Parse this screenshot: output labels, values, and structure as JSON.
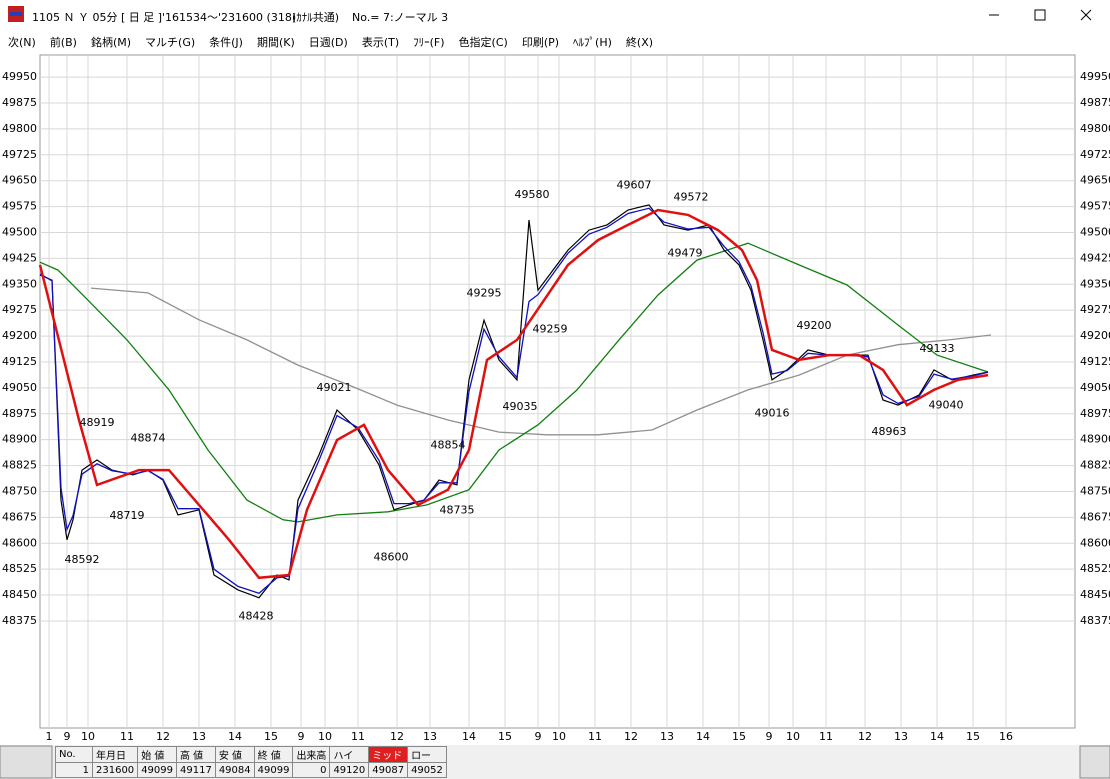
{
  "window": {
    "title": [
      "1105 Ｎ Ｙ 05分 [ 日 足 ]",
      "'161534～'231600 (318)",
      "(ｶﾅﾙ共通)",
      "No.= 7:ノーマル 3"
    ]
  },
  "menu": [
    "次(N)",
    "前(B)",
    "銘柄(M)",
    "マルチ(G)",
    "条件(J)",
    "期間(K)",
    "日週(D)",
    "表示(T)",
    "ﾌﾘｰ(F)",
    "色指定(C)",
    "印刷(P)",
    "ﾍﾙﾌﾟ(H)",
    "終(X)"
  ],
  "chart_data": {
    "type": "line",
    "xlim": [
      0,
      345
    ],
    "xticks": [
      {
        "value": 3,
        "label": "1"
      },
      {
        "value": 9,
        "label": "9"
      },
      {
        "value": 16,
        "label": "10"
      },
      {
        "value": 29,
        "label": "11"
      },
      {
        "value": 41,
        "label": "12"
      },
      {
        "value": 53,
        "label": "13"
      },
      {
        "value": 65,
        "label": "14"
      },
      {
        "value": 77,
        "label": "15"
      },
      {
        "value": 87,
        "label": "9"
      },
      {
        "value": 95,
        "label": "10"
      },
      {
        "value": 106,
        "label": "11"
      },
      {
        "value": 119,
        "label": "12"
      },
      {
        "value": 130,
        "label": "13"
      },
      {
        "value": 143,
        "label": "14"
      },
      {
        "value": 155,
        "label": "15"
      },
      {
        "value": 166,
        "label": "9"
      },
      {
        "value": 173,
        "label": "10"
      },
      {
        "value": 185,
        "label": "11"
      },
      {
        "value": 197,
        "label": "12"
      },
      {
        "value": 209,
        "label": "13"
      },
      {
        "value": 221,
        "label": "14"
      },
      {
        "value": 233,
        "label": "15"
      },
      {
        "value": 243,
        "label": "9"
      },
      {
        "value": 251,
        "label": "10"
      },
      {
        "value": 262,
        "label": "11"
      },
      {
        "value": 275,
        "label": "12"
      },
      {
        "value": 287,
        "label": "13"
      },
      {
        "value": 299,
        "label": "14"
      },
      {
        "value": 311,
        "label": "15"
      },
      {
        "value": 322,
        "label": "16"
      }
    ],
    "ylim": [
      48065,
      50014
    ],
    "yticks": [
      49950,
      49875,
      49800,
      49725,
      49650,
      49575,
      49500,
      49425,
      49350,
      49275,
      49200,
      49125,
      49050,
      48975,
      48900,
      48825,
      48750,
      48675,
      48600,
      48525,
      48450,
      48375
    ],
    "grid": true,
    "series": [
      {
        "color": "#000000",
        "x": [
          0,
          4,
          7,
          9,
          11,
          14,
          19,
          24,
          31,
          36,
          41,
          46,
          53,
          58,
          66,
          73,
          79,
          83,
          86,
          93,
          99,
          106,
          113,
          118,
          123,
          128,
          133,
          139,
          143,
          148,
          153,
          159,
          163,
          166,
          171,
          176,
          183,
          189,
          196,
          203,
          208,
          216,
          223,
          228,
          233,
          237,
          241,
          244,
          249,
          256,
          263,
          269,
          276,
          281,
          286,
          293,
          298,
          304,
          311,
          316
        ],
        "values": [
          49377,
          49362,
          48725,
          48610,
          48668,
          48812,
          48841,
          48812,
          48798,
          48812,
          48783,
          48682,
          48697,
          48508,
          48465,
          48442,
          48508,
          48494,
          48725,
          48856,
          48986,
          48928,
          48827,
          48697,
          48711,
          48725,
          48783,
          48769,
          49073,
          49246,
          49131,
          49073,
          49536,
          49333,
          49391,
          49449,
          49507,
          49522,
          49565,
          49580,
          49522,
          49507,
          49522,
          49449,
          49406,
          49333,
          49189,
          49073,
          49102,
          49160,
          49145,
          49145,
          49145,
          49015,
          49000,
          49029,
          49102,
          49073,
          49087,
          49096
        ]
      },
      {
        "color": "#1010c0",
        "x": [
          0,
          4,
          7,
          9,
          11,
          14,
          19,
          24,
          31,
          36,
          41,
          46,
          53,
          58,
          66,
          73,
          79,
          83,
          86,
          93,
          99,
          106,
          113,
          118,
          123,
          128,
          133,
          139,
          143,
          148,
          153,
          159,
          163,
          166,
          171,
          176,
          183,
          189,
          196,
          203,
          208,
          216,
          223,
          228,
          233,
          237,
          241,
          244,
          249,
          256,
          263,
          269,
          276,
          281,
          286,
          293,
          298,
          304,
          311,
          316
        ],
        "values": [
          49380,
          49360,
          48760,
          48640,
          48680,
          48800,
          48830,
          48810,
          48800,
          48810,
          48785,
          48700,
          48700,
          48525,
          48475,
          48455,
          48500,
          48505,
          48700,
          48840,
          48970,
          48935,
          48840,
          48715,
          48715,
          48725,
          48775,
          48775,
          49040,
          49220,
          49140,
          49080,
          49300,
          49320,
          49380,
          49440,
          49495,
          49515,
          49555,
          49570,
          49530,
          49510,
          49515,
          49460,
          49415,
          49345,
          49210,
          49090,
          49100,
          49150,
          49145,
          49145,
          49140,
          49030,
          49005,
          49025,
          49090,
          49075,
          49085,
          49095
        ]
      },
      {
        "color": "#e01010",
        "x": [
          0,
          13,
          19,
          33,
          43,
          53,
          63,
          73,
          83,
          89,
          99,
          108,
          116,
          126,
          136,
          143,
          149,
          159,
          168,
          176,
          186,
          196,
          206,
          216,
          226,
          234,
          239,
          244,
          253,
          263,
          273,
          281,
          289,
          298,
          306,
          316
        ],
        "values": [
          49406,
          48957,
          48769,
          48812,
          48812,
          48711,
          48610,
          48500,
          48508,
          48697,
          48899,
          48943,
          48812,
          48711,
          48755,
          48870,
          49131,
          49189,
          49304,
          49406,
          49478,
          49522,
          49565,
          49551,
          49507,
          49449,
          49362,
          49160,
          49131,
          49145,
          49145,
          49102,
          49000,
          49044,
          49073,
          49087
        ]
      },
      {
        "color": "#108010",
        "x": [
          0,
          6,
          16,
          29,
          43,
          56,
          69,
          81,
          86,
          99,
          116,
          129,
          143,
          153,
          166,
          179,
          193,
          206,
          219,
          236,
          253,
          269,
          286,
          299,
          316
        ],
        "values": [
          49414,
          49391,
          49304,
          49189,
          49044,
          48870,
          48725,
          48668,
          48662,
          48682,
          48691,
          48711,
          48755,
          48870,
          48943,
          49044,
          49189,
          49319,
          49420,
          49469,
          49406,
          49348,
          49232,
          49145,
          49096
        ]
      },
      {
        "color": "#909090",
        "x": [
          17,
          36,
          53,
          69,
          86,
          103,
          119,
          136,
          153,
          169,
          186,
          204,
          219,
          236,
          253,
          269,
          286,
          303,
          317
        ],
        "values": [
          49339,
          49325,
          49247,
          49189,
          49116,
          49058,
          49000,
          48957,
          48922,
          48914,
          48914,
          48928,
          48986,
          49044,
          49087,
          49145,
          49175,
          49189,
          49203
        ]
      }
    ],
    "annotations": [
      {
        "x": 19,
        "value": 48919,
        "pos": "above"
      },
      {
        "x": 14,
        "value": 48592,
        "pos": "below"
      },
      {
        "x": 36,
        "value": 48874,
        "pos": "above"
      },
      {
        "x": 29,
        "value": 48719,
        "pos": "below"
      },
      {
        "x": 72,
        "value": 48428,
        "pos": "below"
      },
      {
        "x": 98,
        "value": 49021,
        "pos": "above"
      },
      {
        "x": 117,
        "value": 48600,
        "pos": "below"
      },
      {
        "x": 136,
        "value": 48854,
        "pos": "above"
      },
      {
        "x": 139,
        "value": 48735,
        "pos": "below"
      },
      {
        "x": 148,
        "value": 49295,
        "pos": "above"
      },
      {
        "x": 160,
        "value": 49035,
        "pos": "below"
      },
      {
        "x": 164,
        "value": 49580,
        "pos": "above"
      },
      {
        "x": 170,
        "value": 49259,
        "pos": "below"
      },
      {
        "x": 198,
        "value": 49607,
        "pos": "above"
      },
      {
        "x": 217,
        "value": 49572,
        "pos": "above"
      },
      {
        "x": 215,
        "value": 49479,
        "pos": "below"
      },
      {
        "x": 258,
        "value": 49200,
        "pos": "above"
      },
      {
        "x": 244,
        "value": 49016,
        "pos": "below"
      },
      {
        "x": 299,
        "value": 49133,
        "pos": "above"
      },
      {
        "x": 283,
        "value": 48963,
        "pos": "below"
      },
      {
        "x": 302,
        "value": 49040,
        "pos": "below"
      }
    ]
  },
  "status_table": {
    "headers": [
      "No.",
      "年月日",
      "始 値",
      "高 値",
      "安 値",
      "終 値",
      "出来高",
      "ハイ",
      "ミッド",
      "ロー"
    ],
    "rows": [
      [
        1,
        231600,
        49099,
        49117,
        49084,
        49099,
        0,
        49120,
        49087,
        49052
      ]
    ]
  }
}
